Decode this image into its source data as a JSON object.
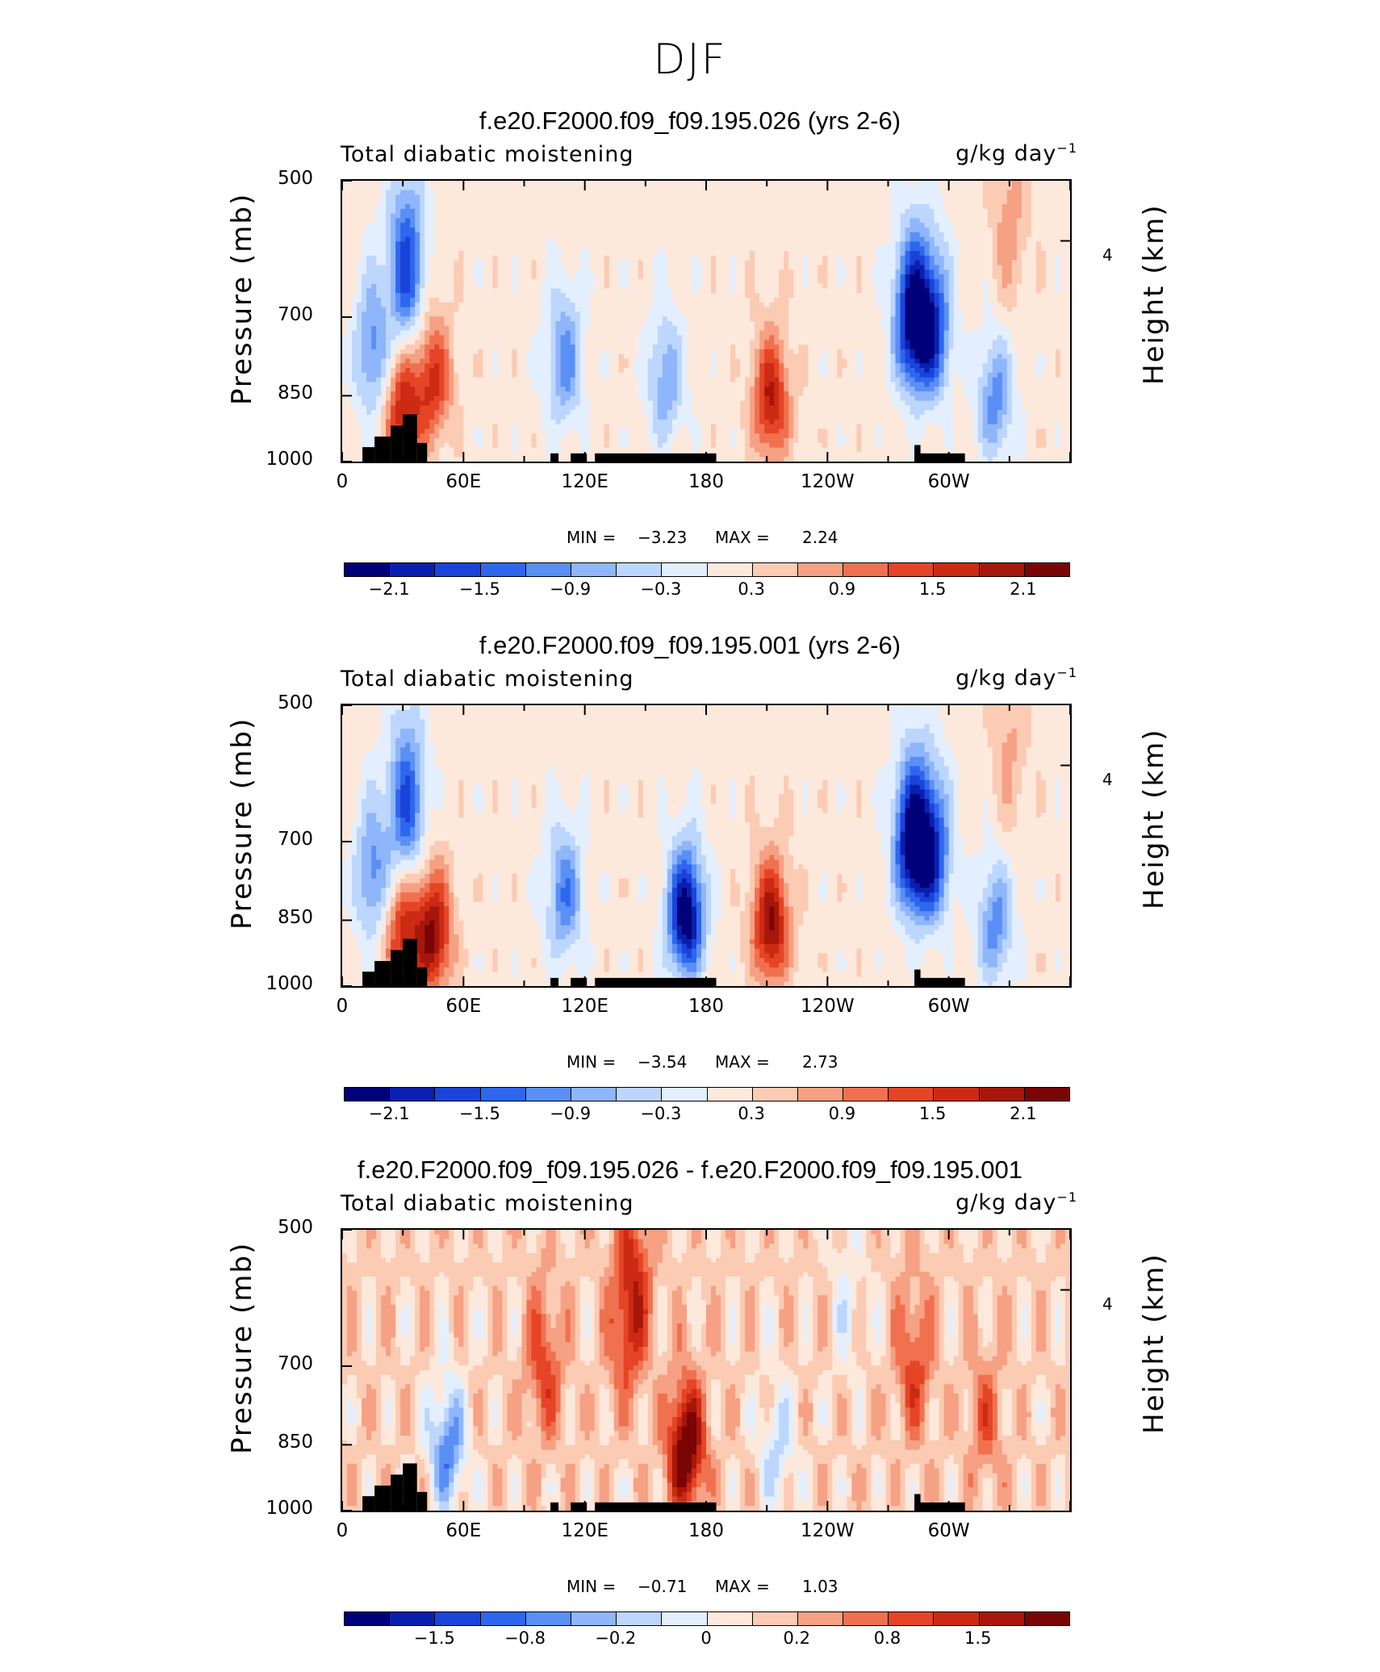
{
  "season": "DJF",
  "colors": {
    "neg": [
      "#00007a",
      "#0a1fb0",
      "#1a44d9",
      "#2e66ee",
      "#5a8ff5",
      "#8fb6fa",
      "#bcd6fd",
      "#e3effe"
    ],
    "pos": [
      "#fde8dc",
      "#fbcbb3",
      "#f6a084",
      "#f0714f",
      "#e64426",
      "#cc2a13",
      "#a7160a",
      "#7a0505"
    ]
  },
  "chart_data": [
    {
      "type": "heatmap",
      "title": "f.e20.F2000.f09_f09.195.026 (yrs 2-6)",
      "left_string": "Total diabatic moistening",
      "units": "g/kg day",
      "units_exp": "−1",
      "ylabel": "Pressure (mb)",
      "ylabel_right": "Height (km)",
      "yticks": [
        "500",
        "700",
        "850",
        "1000"
      ],
      "height_tick": "4",
      "xticks": [
        "0",
        "60E",
        "120E",
        "180",
        "120W",
        "60W"
      ],
      "min_label": "MIN =",
      "min_value": "−3.23",
      "max_label": "MAX =",
      "max_value": "2.24",
      "colorbar_labels": [
        "−2.1",
        "−1.5",
        "−0.9",
        "−0.3",
        "0.3",
        "0.9",
        "1.5",
        "2.1"
      ],
      "features": [
        {
          "lon": 15,
          "p": 760,
          "v": -1.2
        },
        {
          "lon": 32,
          "p": 620,
          "v": -1.8
        },
        {
          "lon": 30,
          "p": 880,
          "v": 1.6
        },
        {
          "lon": 45,
          "p": 820,
          "v": 1.4
        },
        {
          "lon": 110,
          "p": 780,
          "v": -1.2
        },
        {
          "lon": 160,
          "p": 820,
          "v": -1.0
        },
        {
          "lon": 212,
          "p": 860,
          "v": 1.7
        },
        {
          "lon": 282,
          "p": 700,
          "v": -2.4
        },
        {
          "lon": 292,
          "p": 720,
          "v": -1.8
        },
        {
          "lon": 323,
          "p": 860,
          "v": -1.2
        },
        {
          "lon": 330,
          "p": 560,
          "v": 0.6
        }
      ]
    },
    {
      "type": "heatmap",
      "title": "f.e20.F2000.f09_f09.195.001 (yrs 2-6)",
      "left_string": "Total diabatic moistening",
      "units": "g/kg day",
      "units_exp": "−1",
      "ylabel": "Pressure (mb)",
      "ylabel_right": "Height (km)",
      "yticks": [
        "500",
        "700",
        "850",
        "1000"
      ],
      "height_tick": "4",
      "xticks": [
        "0",
        "60E",
        "120E",
        "180",
        "120W",
        "60W"
      ],
      "min_label": "MIN =",
      "min_value": "−3.54",
      "max_label": "MAX =",
      "max_value": "2.73",
      "colorbar_labels": [
        "−2.1",
        "−1.5",
        "−0.9",
        "−0.3",
        "0.3",
        "0.9",
        "1.5",
        "2.1"
      ],
      "features": [
        {
          "lon": 15,
          "p": 760,
          "v": -1.2
        },
        {
          "lon": 32,
          "p": 640,
          "v": -1.7
        },
        {
          "lon": 30,
          "p": 880,
          "v": 1.5
        },
        {
          "lon": 45,
          "p": 880,
          "v": 2.0
        },
        {
          "lon": 110,
          "p": 800,
          "v": -1.3
        },
        {
          "lon": 170,
          "p": 840,
          "v": -2.6
        },
        {
          "lon": 212,
          "p": 860,
          "v": 2.0
        },
        {
          "lon": 282,
          "p": 700,
          "v": -2.5
        },
        {
          "lon": 292,
          "p": 720,
          "v": -1.8
        },
        {
          "lon": 323,
          "p": 860,
          "v": -1.2
        },
        {
          "lon": 330,
          "p": 560,
          "v": 0.5
        }
      ]
    },
    {
      "type": "heatmap",
      "title": "f.e20.F2000.f09_f09.195.026 - f.e20.F2000.f09_f09.195.001",
      "left_string": "Total diabatic moistening",
      "units": "g/kg day",
      "units_exp": "−1",
      "ylabel": "Pressure (mb)",
      "ylabel_right": "Height (km)",
      "yticks": [
        "500",
        "700",
        "850",
        "1000"
      ],
      "height_tick": "4",
      "xticks": [
        "0",
        "60E",
        "120E",
        "180",
        "120W",
        "60W"
      ],
      "min_label": "MIN =",
      "min_value": "−0.71",
      "max_label": "MAX =",
      "max_value": "1.03",
      "colorbar_labels": [
        "−1.5",
        "−0.8",
        "−0.2",
        "0",
        "0.2",
        "0.8",
        "1.5"
      ],
      "features": [
        {
          "lon": 52,
          "p": 860,
          "v": -0.6
        },
        {
          "lon": 100,
          "p": 700,
          "v": 0.4
        },
        {
          "lon": 140,
          "p": 640,
          "v": 0.35
        },
        {
          "lon": 170,
          "p": 860,
          "v": 0.9
        },
        {
          "lon": 145,
          "p": 560,
          "v": 0.35
        },
        {
          "lon": 215,
          "p": 860,
          "v": -0.3
        },
        {
          "lon": 283,
          "p": 700,
          "v": 0.4
        },
        {
          "lon": 318,
          "p": 800,
          "v": 0.3
        },
        {
          "lon": 250,
          "p": 600,
          "v": -0.15
        }
      ]
    }
  ]
}
